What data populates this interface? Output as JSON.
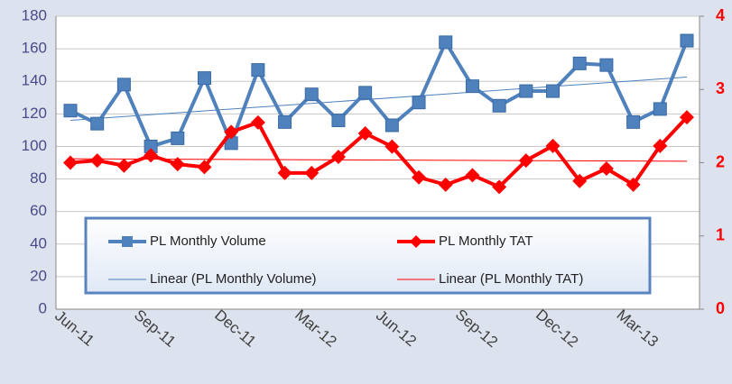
{
  "chart_data": {
    "type": "line",
    "categories": [
      "Jun-11",
      null,
      null,
      "Sep-11",
      null,
      null,
      "Dec-11",
      null,
      null,
      "Mar-12",
      null,
      null,
      "Jun-12",
      null,
      null,
      "Sep-12",
      null,
      null,
      "Dec-12",
      null,
      null,
      "Mar-13",
      null,
      null
    ],
    "series": [
      {
        "name": "PL Monthly Volume",
        "color": "#4f81bd",
        "marker": "square",
        "values": [
          122,
          114,
          138,
          100,
          105,
          142,
          102,
          147,
          115,
          132,
          116,
          133,
          113,
          127,
          164,
          137,
          125,
          134,
          134,
          151,
          150,
          115,
          123,
          165
        ]
      },
      {
        "name": "PL Monthly TAT",
        "color": "#ff0000",
        "marker": "diamond",
        "axis": "y2",
        "values": [
          2.0,
          2.03,
          1.96,
          2.1,
          1.98,
          1.94,
          2.42,
          2.55,
          1.86,
          1.86,
          2.08,
          2.4,
          2.22,
          1.8,
          1.7,
          1.83,
          1.67,
          2.03,
          2.23,
          1.75,
          1.92,
          1.7,
          2.23,
          2.62
        ]
      }
    ],
    "trendlines": [
      {
        "name": "Linear (PL Monthly Volume)",
        "series": 0,
        "color": "#4f81bd"
      },
      {
        "name": "Linear (PL Monthly TAT)",
        "series": 1,
        "color": "#ff0000"
      }
    ],
    "ylim": [
      0,
      180
    ],
    "yticks": [
      0,
      20,
      40,
      60,
      80,
      100,
      120,
      140,
      160,
      180
    ],
    "y2lim": [
      0,
      4
    ],
    "y2ticks": [
      0,
      1,
      2,
      3,
      4
    ],
    "grid": true
  }
}
